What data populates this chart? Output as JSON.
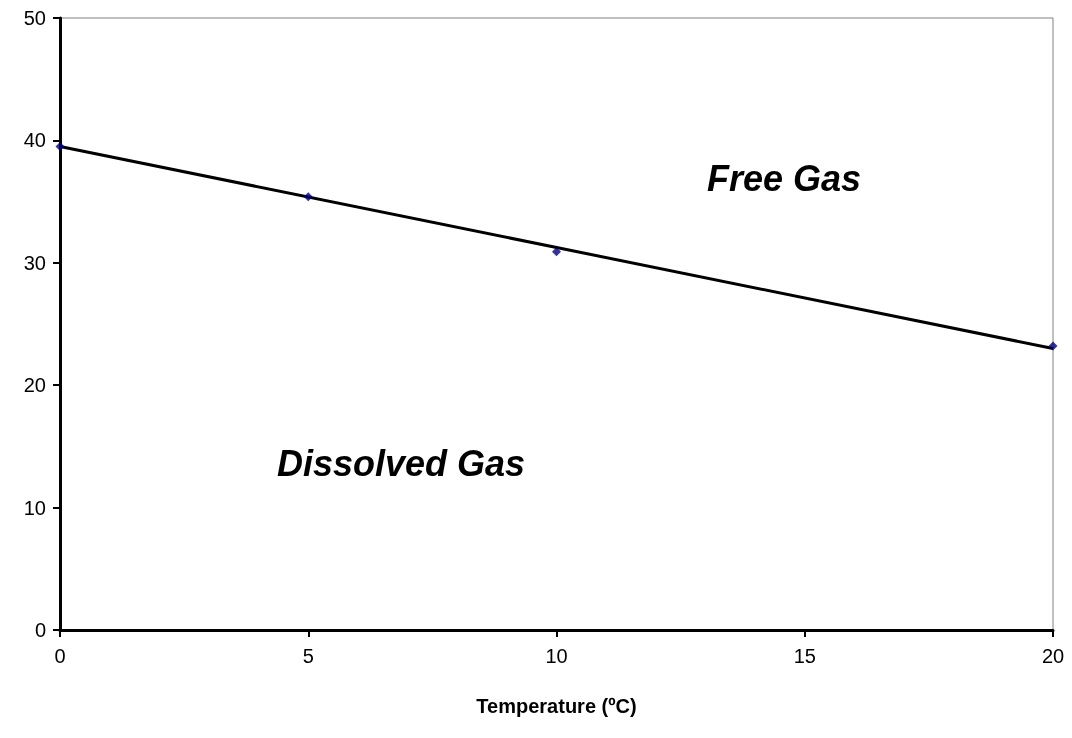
{
  "chart_data": {
    "type": "scatter",
    "xlabel": "Temperature (ºC)",
    "xlim": [
      0,
      20
    ],
    "xticks": [
      0,
      5,
      10,
      15,
      20
    ],
    "ylim": [
      0,
      50
    ],
    "yticks": [
      0,
      10,
      20,
      30,
      40,
      50
    ],
    "grid": false,
    "marker": "diamond",
    "annotations": [
      "Free Gas",
      "Dissolved Gas"
    ],
    "series": [
      {
        "color": "#000080",
        "x": [
          0,
          5,
          10,
          20
        ],
        "values": [
          39.5,
          35.4,
          30.9,
          23.2
        ]
      },
      {
        "type": "line",
        "color": "#000000",
        "marker": "none",
        "x": [
          0,
          20
        ],
        "values": [
          39.5,
          23.0
        ]
      }
    ]
  }
}
